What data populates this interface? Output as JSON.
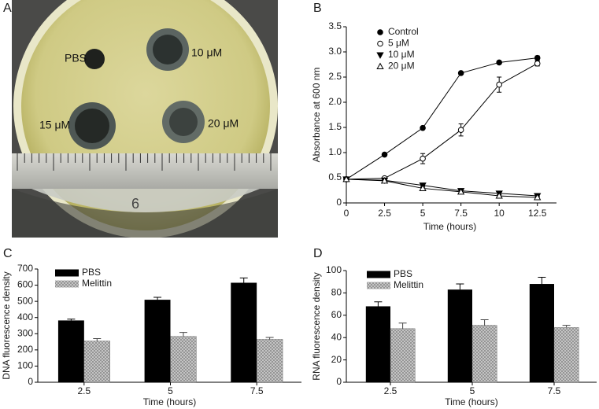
{
  "photo": {
    "panel_label": "A",
    "labels": [
      "PBS",
      "10 μM",
      "15 μM",
      "20 μM"
    ],
    "ruler_label": "6"
  },
  "chart_data": [
    {
      "type": "line",
      "panel_label": "B",
      "x_label": "Time (hours)",
      "y_label": "Absorbance at 600 nm",
      "x": [
        0,
        2.5,
        5,
        7.5,
        10,
        12.5
      ],
      "series": [
        {
          "name": "Control",
          "color": "#000000",
          "marker": "circle",
          "filled": true,
          "values": [
            0.47,
            0.96,
            1.49,
            2.58,
            2.79,
            2.88
          ],
          "errors": [
            0,
            0.02,
            0.02,
            0.02,
            0.02,
            0.04
          ]
        },
        {
          "name": "5 μM",
          "color": "#000000",
          "marker": "circle",
          "filled": false,
          "values": [
            0.47,
            0.49,
            0.88,
            1.45,
            2.35,
            2.77
          ],
          "errors": [
            0,
            0.02,
            0.1,
            0.12,
            0.15,
            0.05
          ]
        },
        {
          "name": "10 μM",
          "color": "#000000",
          "marker": "triangle-down",
          "filled": true,
          "values": [
            0.47,
            0.45,
            0.35,
            0.24,
            0.19,
            0.14
          ],
          "errors": [
            0,
            0.02,
            0.02,
            0.03,
            0.03,
            0.02
          ]
        },
        {
          "name": "20 μM",
          "color": "#000000",
          "marker": "triangle-up",
          "filled": false,
          "values": [
            0.47,
            0.44,
            0.29,
            0.22,
            0.14,
            0.11
          ],
          "errors": [
            0,
            0.02,
            0.02,
            0.02,
            0.02,
            0.02
          ]
        }
      ],
      "xlim": [
        0,
        13.75
      ],
      "ylim": [
        0,
        3.5
      ],
      "xticks": [
        0,
        2.5,
        5,
        7.5,
        10,
        12.5
      ],
      "yticks": [
        0,
        0.5,
        {
          "value": 1,
          "label": "1.0"
        },
        1.5,
        {
          "value": 2,
          "label": "2.0"
        },
        2.5,
        {
          "value": 3,
          "label": "3.0"
        },
        3.5
      ],
      "legend": "upper-left"
    },
    {
      "type": "bar",
      "panel_label": "C",
      "x_label": "Time (hours)",
      "y_label": "DNA fluorescence density",
      "categories": [
        "2.5",
        "5",
        "7.5"
      ],
      "series": [
        {
          "name": "PBS",
          "color": "#000000",
          "hatch": false,
          "values": [
            382,
            510,
            615
          ],
          "errors": [
            8,
            15,
            30
          ]
        },
        {
          "name": "Melittin",
          "color": "#8c8c8c",
          "hatch": true,
          "values": [
            255,
            283,
            265
          ],
          "errors": [
            15,
            25,
            12
          ]
        }
      ],
      "ylim": [
        0,
        700
      ],
      "yticks": [
        0,
        100,
        200,
        300,
        400,
        500,
        600,
        700
      ],
      "legend": "upper-left"
    },
    {
      "type": "bar",
      "panel_label": "D",
      "x_label": "Time (hours)",
      "y_label": "RNA fluorescence density",
      "categories": [
        "2.5",
        "5",
        "7.5"
      ],
      "series": [
        {
          "name": "PBS",
          "color": "#000000",
          "hatch": false,
          "values": [
            68,
            83,
            88
          ],
          "errors": [
            4,
            5,
            6
          ]
        },
        {
          "name": "Melittin",
          "color": "#8c8c8c",
          "hatch": true,
          "values": [
            48,
            51,
            49
          ],
          "errors": [
            5,
            5,
            2
          ]
        }
      ],
      "ylim": [
        0,
        100
      ],
      "yticks": [
        0,
        20,
        40,
        60,
        80,
        100
      ],
      "legend": "upper-left"
    }
  ]
}
